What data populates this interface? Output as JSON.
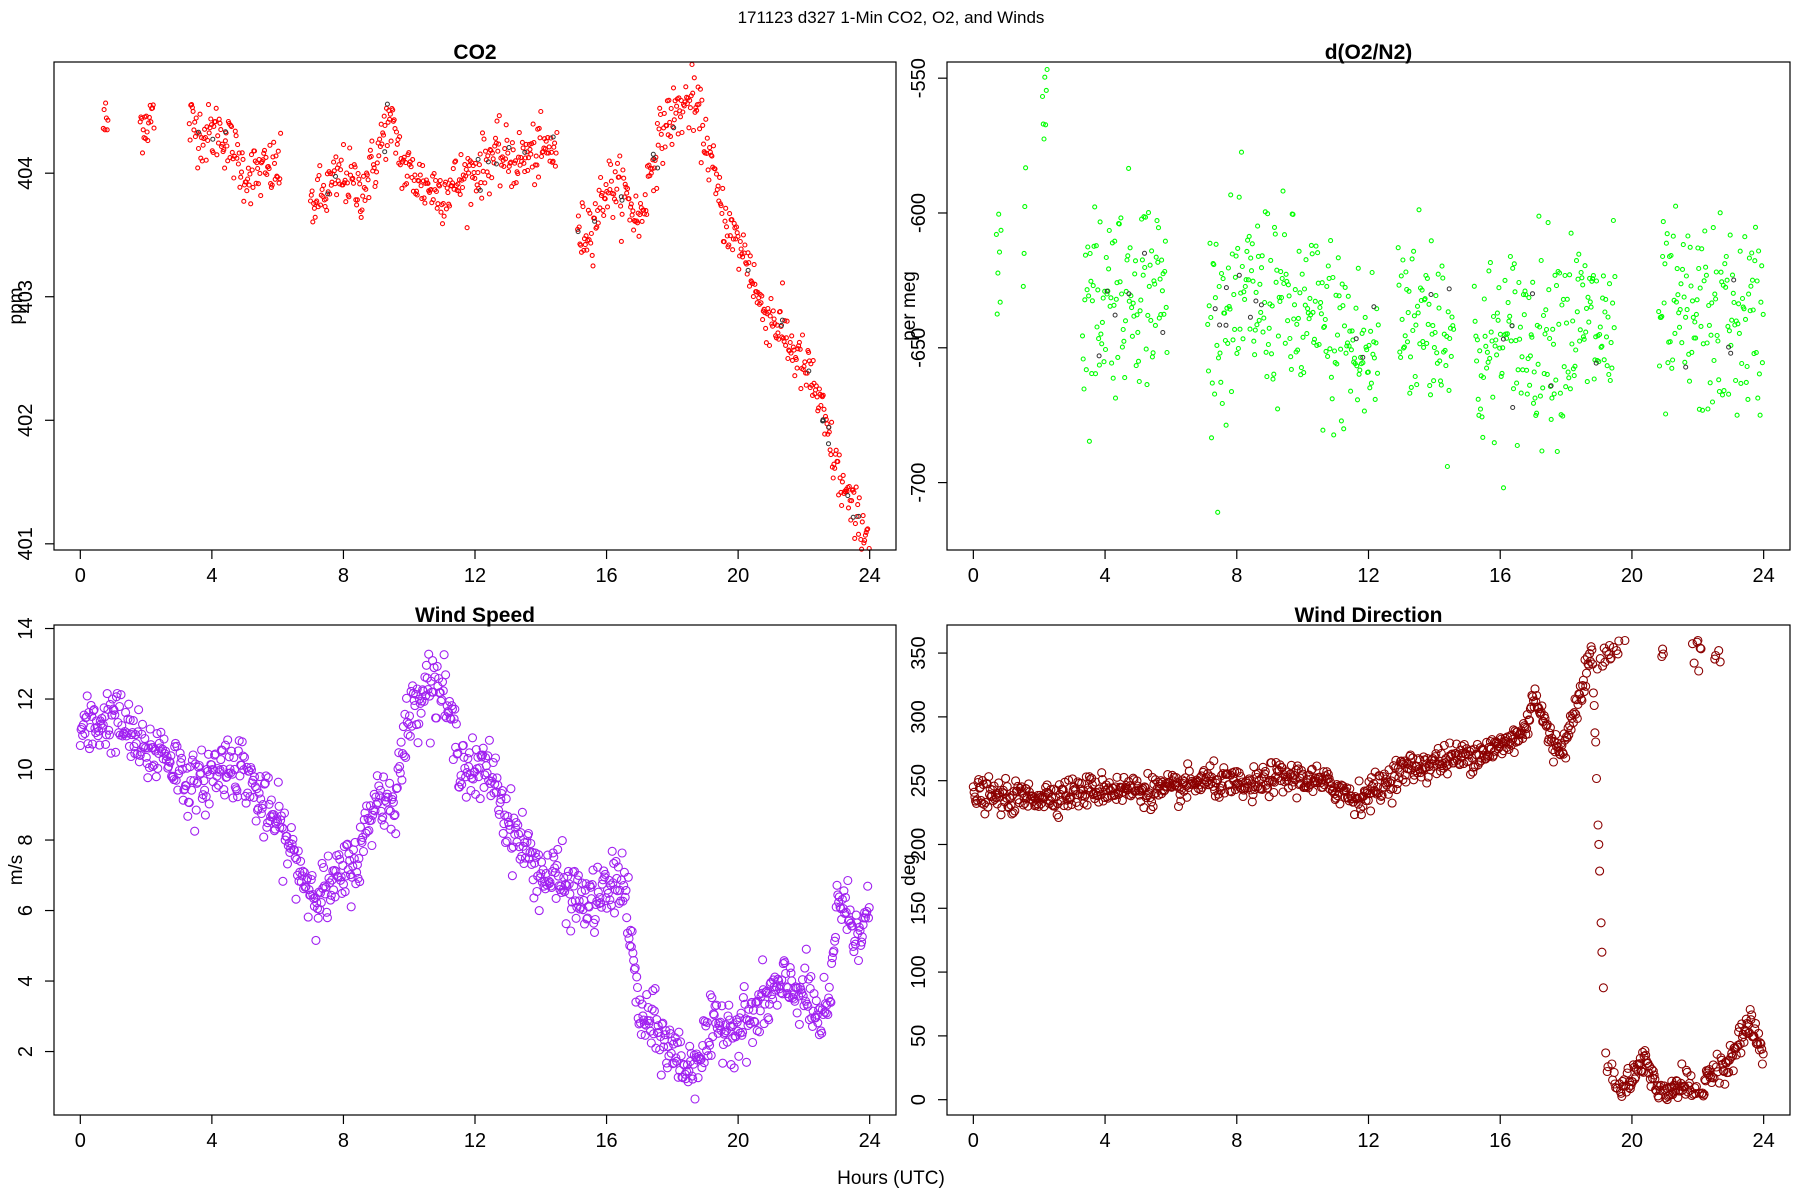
{
  "figure": {
    "suptitle": "171123   d327   1-Min CO2, O2, and Winds",
    "xlabel": "Hours (UTC)"
  },
  "chart_data": [
    {
      "type": "scatter",
      "title": "CO2",
      "xlabel": "",
      "ylabel": "ppm",
      "xlim": [
        -0.8,
        24.8
      ],
      "ylim": [
        400.95,
        404.9
      ],
      "xticks": [
        0,
        4,
        8,
        12,
        16,
        20,
        24
      ],
      "yticks": [
        401,
        402,
        403,
        404
      ],
      "color": "#ff0000",
      "marker_radius": 2.0,
      "trend": [
        [
          0.7,
          404.4
        ],
        [
          1.8,
          404.4
        ],
        [
          2.2,
          404.45
        ],
        [
          3.4,
          404.4
        ],
        [
          3.8,
          404.3
        ],
        [
          4.2,
          404.35
        ],
        [
          4.6,
          404.2
        ],
        [
          5.0,
          404.0
        ],
        [
          5.5,
          404.0
        ],
        [
          6.0,
          404.05
        ],
        [
          7.0,
          403.75
        ],
        [
          7.5,
          403.85
        ],
        [
          8.0,
          404.0
        ],
        [
          8.5,
          403.85
        ],
        [
          9.0,
          404.1
        ],
        [
          9.3,
          404.4
        ],
        [
          9.6,
          404.3
        ],
        [
          9.8,
          404.05
        ],
        [
          10.5,
          403.9
        ],
        [
          11.0,
          403.85
        ],
        [
          11.6,
          403.95
        ],
        [
          12.2,
          404.05
        ],
        [
          12.6,
          404.15
        ],
        [
          13.2,
          404.1
        ],
        [
          13.8,
          404.15
        ],
        [
          14.4,
          404.2
        ],
        [
          15.2,
          403.5
        ],
        [
          15.6,
          403.6
        ],
        [
          16.0,
          403.9
        ],
        [
          16.5,
          403.85
        ],
        [
          17.0,
          403.6
        ],
        [
          17.4,
          404.1
        ],
        [
          17.8,
          404.4
        ],
        [
          18.2,
          404.5
        ],
        [
          18.6,
          404.6
        ],
        [
          19.0,
          404.3
        ],
        [
          19.4,
          403.8
        ],
        [
          19.8,
          403.5
        ],
        [
          20.3,
          403.3
        ],
        [
          20.7,
          402.9
        ],
        [
          21.0,
          402.85
        ],
        [
          21.4,
          402.7
        ],
        [
          21.8,
          402.5
        ],
        [
          22.3,
          402.3
        ],
        [
          22.7,
          401.9
        ],
        [
          23.0,
          401.6
        ],
        [
          23.4,
          401.3
        ],
        [
          23.7,
          401.15
        ],
        [
          24.0,
          401.08
        ]
      ],
      "noise": 0.12,
      "gaps": [
        [
          0.85,
          1.8
        ],
        [
          2.25,
          3.3
        ],
        [
          6.1,
          7.0
        ],
        [
          14.5,
          15.1
        ]
      ]
    },
    {
      "type": "scatter",
      "title": "d(O2/N2)",
      "xlabel": "",
      "ylabel": "per meg",
      "xlim": [
        -0.8,
        24.8
      ],
      "ylim": [
        -725,
        -544
      ],
      "xticks": [
        0,
        4,
        8,
        12,
        16,
        20,
        24
      ],
      "yticks": [
        -700,
        -650,
        -600,
        -550
      ],
      "color": "#00ff00",
      "marker_radius": 2.0,
      "trend": [
        [
          0.7,
          -620
        ],
        [
          1.5,
          -600
        ],
        [
          2.2,
          -550
        ],
        [
          3.3,
          -635
        ],
        [
          4.0,
          -630
        ],
        [
          5.0,
          -625
        ],
        [
          5.8,
          -630
        ],
        [
          7.2,
          -640
        ],
        [
          8.0,
          -635
        ],
        [
          9.0,
          -630
        ],
        [
          10.0,
          -640
        ],
        [
          11.0,
          -645
        ],
        [
          12.0,
          -655
        ],
        [
          13.0,
          -635
        ],
        [
          14.2,
          -640
        ],
        [
          15.3,
          -655
        ],
        [
          16.0,
          -650
        ],
        [
          17.0,
          -645
        ],
        [
          18.0,
          -640
        ],
        [
          19.4,
          -645
        ],
        [
          20.8,
          -640
        ],
        [
          22.0,
          -640
        ],
        [
          23.0,
          -640
        ],
        [
          24.0,
          -640
        ]
      ],
      "noise": 18,
      "gaps": [
        [
          0.85,
          1.5
        ],
        [
          1.6,
          2.1
        ],
        [
          2.25,
          3.3
        ],
        [
          5.9,
          7.1
        ],
        [
          12.3,
          12.9
        ],
        [
          14.6,
          15.2
        ],
        [
          19.5,
          20.8
        ]
      ]
    },
    {
      "type": "scatter",
      "title": "Wind Speed",
      "xlabel": "",
      "ylabel": "m/s",
      "xlim": [
        -0.8,
        24.8
      ],
      "ylim": [
        0.2,
        14.1
      ],
      "xticks": [
        0,
        4,
        8,
        12,
        16,
        20,
        24
      ],
      "yticks": [
        2,
        4,
        6,
        8,
        10,
        12,
        14
      ],
      "color": "#a020f0",
      "marker_radius": 4.0,
      "trend": [
        [
          0.0,
          11.0
        ],
        [
          0.5,
          11.3
        ],
        [
          1.0,
          11.5
        ],
        [
          1.5,
          11.0
        ],
        [
          2.0,
          10.4
        ],
        [
          2.5,
          10.6
        ],
        [
          3.0,
          10.0
        ],
        [
          3.5,
          9.4
        ],
        [
          4.0,
          9.9
        ],
        [
          4.5,
          10.2
        ],
        [
          5.0,
          10.0
        ],
        [
          5.5,
          9.0
        ],
        [
          6.0,
          8.5
        ],
        [
          6.5,
          7.5
        ],
        [
          7.0,
          6.6
        ],
        [
          7.5,
          6.5
        ],
        [
          8.0,
          7.0
        ],
        [
          8.5,
          7.6
        ],
        [
          9.0,
          9.3
        ],
        [
          9.5,
          9.0
        ],
        [
          10.0,
          11.5
        ],
        [
          10.5,
          12.5
        ],
        [
          11.0,
          12.3
        ],
        [
          11.5,
          10.5
        ],
        [
          12.0,
          9.8
        ],
        [
          12.5,
          10.0
        ],
        [
          13.0,
          8.5
        ],
        [
          13.5,
          7.8
        ],
        [
          14.0,
          7.0
        ],
        [
          14.5,
          6.9
        ],
        [
          15.0,
          6.4
        ],
        [
          15.5,
          6.2
        ],
        [
          16.0,
          6.5
        ],
        [
          16.5,
          7.0
        ],
        [
          17.0,
          3.0
        ],
        [
          17.5,
          2.6
        ],
        [
          18.0,
          2.0
        ],
        [
          18.5,
          1.5
        ],
        [
          19.0,
          2.2
        ],
        [
          19.5,
          2.8
        ],
        [
          20.0,
          2.7
        ],
        [
          20.5,
          3.0
        ],
        [
          21.0,
          3.6
        ],
        [
          21.5,
          3.8
        ],
        [
          22.0,
          3.7
        ],
        [
          22.5,
          2.8
        ],
        [
          22.8,
          3.2
        ],
        [
          23.0,
          6.5
        ],
        [
          23.5,
          5.5
        ],
        [
          24.0,
          5.8
        ]
      ],
      "noise": 0.45,
      "gaps": []
    },
    {
      "type": "scatter",
      "title": "Wind Direction",
      "xlabel": "",
      "ylabel": "deg",
      "xlim": [
        -0.8,
        24.8
      ],
      "ylim": [
        -12,
        372
      ],
      "xticks": [
        0,
        4,
        8,
        12,
        16,
        20,
        24
      ],
      "yticks": [
        0,
        50,
        100,
        150,
        200,
        250,
        300,
        350
      ],
      "color": "#8b0000",
      "marker_radius": 4.0,
      "trend": [
        [
          0.0,
          240
        ],
        [
          1.0,
          236
        ],
        [
          2.0,
          238
        ],
        [
          3.0,
          240
        ],
        [
          4.0,
          244
        ],
        [
          5.0,
          243
        ],
        [
          6.0,
          242
        ],
        [
          7.0,
          250
        ],
        [
          8.0,
          246
        ],
        [
          8.5,
          245
        ],
        [
          9.0,
          252
        ],
        [
          10.0,
          252
        ],
        [
          11.0,
          245
        ],
        [
          11.6,
          236
        ],
        [
          12.0,
          240
        ],
        [
          12.5,
          248
        ],
        [
          13.0,
          258
        ],
        [
          14.0,
          264
        ],
        [
          15.0,
          270
        ],
        [
          16.0,
          276
        ],
        [
          16.8,
          290
        ],
        [
          17.0,
          320
        ],
        [
          17.3,
          300
        ],
        [
          17.6,
          275
        ],
        [
          18.0,
          280
        ],
        [
          18.4,
          320
        ],
        [
          18.8,
          350
        ],
        [
          19.2,
          35
        ],
        [
          19.6,
          5
        ],
        [
          20.0,
          15
        ],
        [
          20.4,
          35
        ],
        [
          20.8,
          5
        ],
        [
          21.3,
          10
        ],
        [
          21.7,
          15
        ],
        [
          22.0,
          5
        ],
        [
          22.4,
          20
        ],
        [
          22.8,
          25
        ],
        [
          23.2,
          45
        ],
        [
          23.6,
          60
        ],
        [
          24.0,
          35
        ]
      ],
      "noise": 6,
      "gaps": []
    }
  ]
}
